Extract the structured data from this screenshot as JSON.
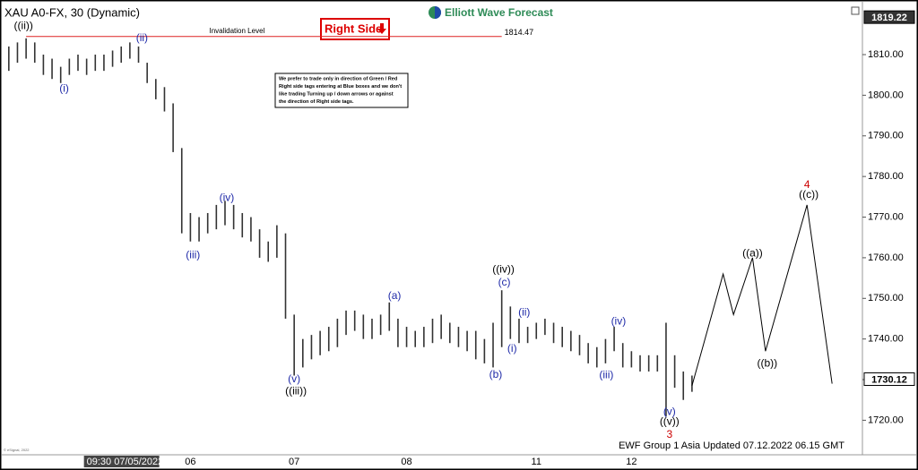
{
  "chart_data": {
    "type": "range-bar",
    "title": "XAU A0-FX, 30 (Dynamic)",
    "brand": "Elliott Wave Forecast",
    "tag": "Right Side",
    "note": [
      "We prefer to trade only in direction of Green / Red",
      "Right side tags entering at Blue boxes and we don't",
      "like trading Turning up / down arrows or against",
      "the direction of Right side tags."
    ],
    "footer": "EWF Group 1 Asia Updated 07.12.2022 06.15 GMT",
    "copyright": "© eSignal, 2022",
    "color": "#333333",
    "ylim": [
      1711.5,
      1823
    ],
    "yticks": [
      {
        "value": 1720,
        "label": "1720.00"
      },
      {
        "value": 1730,
        "label": "1730.00"
      },
      {
        "value": 1740,
        "label": "1740.00"
      },
      {
        "value": 1750,
        "label": "1750.00"
      },
      {
        "value": 1760,
        "label": "1760.00"
      },
      {
        "value": 1770,
        "label": "1770.00"
      },
      {
        "value": 1780,
        "label": "1780.00"
      },
      {
        "value": 1790,
        "label": "1790.00"
      },
      {
        "value": 1800,
        "label": "1800.00"
      },
      {
        "value": 1810,
        "label": "1810.00"
      }
    ],
    "xlim": [
      -0.5,
      98.5
    ],
    "xticks": [
      {
        "value": 9,
        "label": "09:30 07/05/2022"
      },
      {
        "value": 21,
        "label": "06"
      },
      {
        "value": 33,
        "label": "07"
      },
      {
        "value": 46,
        "label": "08"
      },
      {
        "value": 61,
        "label": "11"
      },
      {
        "value": 72,
        "label": "12"
      }
    ],
    "low": [
      1806,
      1808,
      1809,
      1808,
      1805,
      1804,
      1803,
      1805,
      1806,
      1805,
      1806,
      1806,
      1807,
      1808,
      1809,
      1808,
      1803,
      1799,
      1796,
      1786,
      1766,
      1764,
      1764,
      1766,
      1767,
      1768,
      1767,
      1765,
      1764,
      1760,
      1759,
      1760,
      1745,
      1731,
      1733,
      1735,
      1736,
      1737,
      1738,
      1741,
      1742,
      1740,
      1740,
      1741,
      1742,
      1738,
      1738,
      1738,
      1738,
      1739,
      1740,
      1739,
      1738,
      1737,
      1735,
      1734,
      1733,
      1738,
      1740,
      1739,
      1739,
      1740,
      1741,
      1739,
      1738,
      1737,
      1736,
      1734,
      1733,
      1734,
      1737,
      1733,
      1733,
      1732,
      1732,
      1732,
      1721,
      1728,
      1725,
      1727
    ],
    "high": [
      1812,
      1813,
      1814,
      1813,
      1810,
      1809,
      1807,
      1809,
      1810,
      1809,
      1810,
      1810,
      1811,
      1812,
      1813,
      1812,
      1808,
      1804,
      1802,
      1798,
      1787,
      1771,
      1770,
      1771,
      1773,
      1774,
      1773,
      1771,
      1770,
      1767,
      1764,
      1768,
      1766,
      1746,
      1740,
      1741,
      1742,
      1743,
      1745,
      1747,
      1747,
      1746,
      1745,
      1746,
      1749,
      1745,
      1743,
      1742,
      1743,
      1745,
      1746,
      1744,
      1743,
      1742,
      1742,
      1740,
      1744,
      1752,
      1748,
      1745,
      1743,
      1744,
      1745,
      1744,
      1743,
      1742,
      1741,
      1739,
      1738,
      1740,
      1743,
      1739,
      1737,
      1736,
      1736,
      1736,
      1744,
      1736,
      1732,
      1731
    ],
    "projection": {
      "x": [
        79,
        82.6,
        83.8,
        86,
        87.5,
        92.3,
        95.2
      ],
      "y": [
        1728.5,
        1756,
        1746,
        1760,
        1737,
        1773,
        1729
      ]
    },
    "invalidation": {
      "label": "Invalidation Level",
      "value": 1814.47,
      "x": [
        2,
        57
      ]
    },
    "price_marks": [
      {
        "value": 1819.22,
        "style": "dark"
      },
      {
        "value": 1730.12,
        "style": "light"
      }
    ],
    "wave_labels": [
      {
        "text": "((ii))",
        "x": 1.7,
        "y": 1817,
        "color": "#000000"
      },
      {
        "text": "(i)",
        "x": 6.4,
        "y": 1801.5,
        "color": "#1f2aa8"
      },
      {
        "text": "(ii)",
        "x": 15.4,
        "y": 1814,
        "color": "#1f2aa8"
      },
      {
        "text": "(iii)",
        "x": 21.3,
        "y": 1760.6,
        "color": "#1f2aa8"
      },
      {
        "text": "(iv)",
        "x": 25.2,
        "y": 1774.7,
        "color": "#1f2aa8"
      },
      {
        "text": "(v)",
        "x": 33,
        "y": 1730,
        "color": "#1f2aa8"
      },
      {
        "text": "((iii))",
        "x": 33.2,
        "y": 1727.1,
        "color": "#000000"
      },
      {
        "text": "(a)",
        "x": 44.6,
        "y": 1750.5,
        "color": "#1f2aa8"
      },
      {
        "text": "((iv))",
        "x": 57.2,
        "y": 1757,
        "color": "#000000"
      },
      {
        "text": "(c)",
        "x": 57.3,
        "y": 1753.8,
        "color": "#1f2aa8"
      },
      {
        "text": "(b)",
        "x": 56.3,
        "y": 1731.2,
        "color": "#1f2aa8"
      },
      {
        "text": "(i)",
        "x": 58.2,
        "y": 1737.5,
        "color": "#1f2aa8"
      },
      {
        "text": "(ii)",
        "x": 59.6,
        "y": 1746.5,
        "color": "#1f2aa8"
      },
      {
        "text": "(iii)",
        "x": 69.1,
        "y": 1731,
        "color": "#1f2aa8"
      },
      {
        "text": "(iv)",
        "x": 70.5,
        "y": 1744.3,
        "color": "#1f2aa8"
      },
      {
        "text": "(v)",
        "x": 76.4,
        "y": 1722,
        "color": "#1f2aa8"
      },
      {
        "text": "((v))",
        "x": 76.4,
        "y": 1719.6,
        "color": "#000000"
      },
      {
        "text": "3",
        "x": 76.4,
        "y": 1716.4,
        "color": "#cc0000"
      },
      {
        "text": "((a))",
        "x": 86,
        "y": 1761,
        "color": "#000000"
      },
      {
        "text": "((b))",
        "x": 87.7,
        "y": 1733.9,
        "color": "#000000"
      },
      {
        "text": "4",
        "x": 92.3,
        "y": 1777.9,
        "color": "#cc0000"
      },
      {
        "text": "((c))",
        "x": 92.5,
        "y": 1775.4,
        "color": "#000000"
      }
    ]
  }
}
